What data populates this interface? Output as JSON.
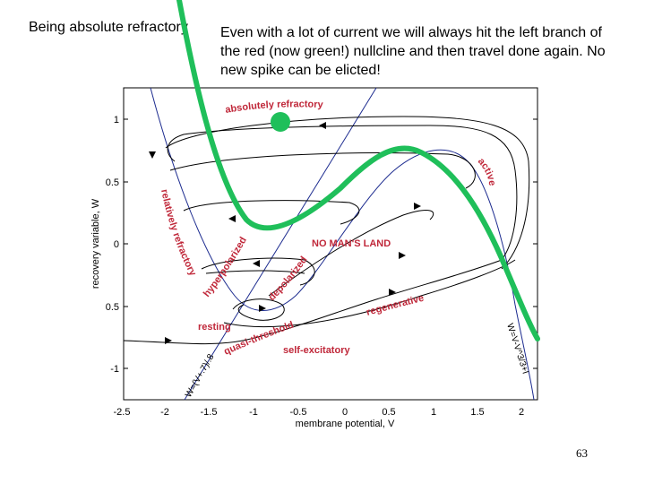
{
  "header": {
    "left_text": "Being absolute refractory",
    "right_text": "Even with a lot of current we will always hit the left branch of the red (now green!) nullcline and then travel done again. No new spike can be elicted!"
  },
  "figure": {
    "x_axis_label": "membrane potential, V",
    "y_axis_label": "recovery variable, W",
    "x_ticks": [
      "-2.5",
      "-2",
      "-1.5",
      "-1",
      "-0.5",
      "0",
      "0.5",
      "1",
      "1.5",
      "2"
    ],
    "y_ticks": [
      "1",
      "0.5",
      "0",
      "0.5",
      "-1"
    ],
    "region_labels": {
      "absolutely_refractory": "absolutely refractory",
      "active": "active",
      "relatively_refractory": "relatively refractory",
      "hyperpolarized": "hyperpolarized",
      "depolarized": "depolarized",
      "no_mans_land": "NO MAN'S LAND",
      "regenerative": "regenerative",
      "resting": "resting",
      "quasi_threshold": "quasi-threshold",
      "self_excitatory": "self-excitatory"
    },
    "nullcline_labels": {
      "cubic": "W=V-V^3/3+I",
      "linear": "W=(V+.7)/.8"
    },
    "colors": {
      "green_nullcline": "#1fbf5a",
      "red_labels": "#c0283a",
      "blue_lines": "#1c2b8f"
    }
  },
  "footer": {
    "page_number": "63"
  }
}
